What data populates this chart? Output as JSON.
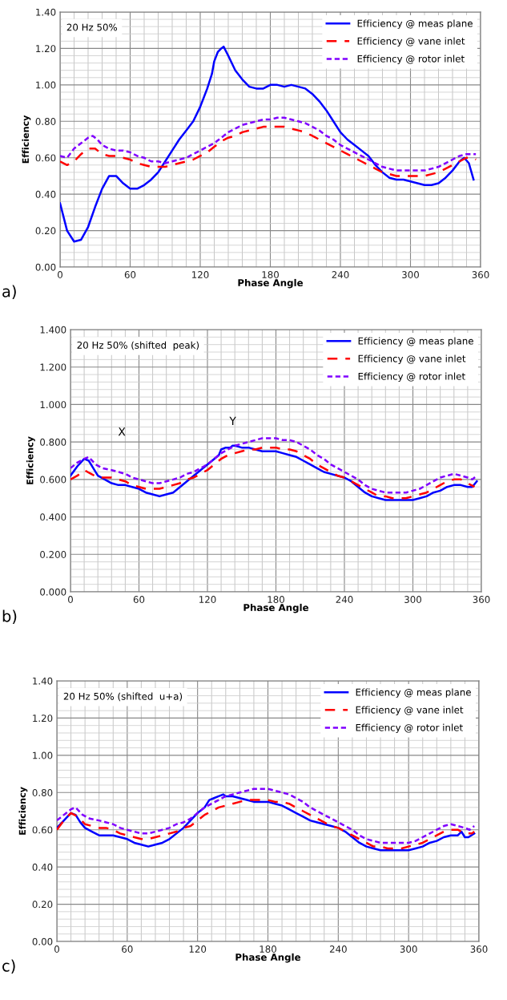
{
  "chart_data": [
    {
      "type": "line",
      "title": "20 Hz 50%",
      "xlabel": "Phase Angle",
      "ylabel": "Efficiency",
      "annotations": [
        "a)"
      ],
      "xlim": [
        0,
        360
      ],
      "ylim": [
        0,
        1.4
      ],
      "xticks": [
        0,
        60,
        120,
        180,
        240,
        300,
        360
      ],
      "yticks": [
        {
          "value": 0,
          "label": "0.00"
        },
        {
          "value": 0.2,
          "label": "0.20"
        },
        {
          "value": 0.4,
          "label": "0.40"
        },
        {
          "value": 0.6,
          "label": "0.60"
        },
        {
          "value": 0.8,
          "label": "0.80"
        },
        {
          "value": 1.0,
          "label": "1.00"
        },
        {
          "value": 1.2,
          "label": "1.20"
        },
        {
          "value": 1.4,
          "label": "1.40"
        }
      ],
      "grid": true,
      "legend": "top right",
      "series": [
        {
          "name": "Efficiency @ meas plane",
          "color": "#0000ff",
          "line_style": "solid",
          "x": [
            0,
            6,
            12,
            18,
            24,
            30,
            36,
            42,
            48,
            54,
            60,
            66,
            72,
            78,
            84,
            90,
            96,
            102,
            108,
            114,
            120,
            126,
            130,
            132,
            135,
            138,
            140,
            144,
            150,
            156,
            162,
            168,
            174,
            180,
            186,
            192,
            198,
            204,
            210,
            216,
            222,
            228,
            234,
            240,
            246,
            252,
            258,
            264,
            270,
            276,
            282,
            288,
            294,
            300,
            306,
            312,
            318,
            324,
            330,
            336,
            342,
            346,
            350,
            354
          ],
          "values": [
            0.35,
            0.2,
            0.14,
            0.15,
            0.22,
            0.33,
            0.43,
            0.5,
            0.5,
            0.46,
            0.43,
            0.43,
            0.45,
            0.48,
            0.52,
            0.58,
            0.64,
            0.7,
            0.75,
            0.8,
            0.88,
            0.98,
            1.06,
            1.13,
            1.18,
            1.2,
            1.21,
            1.16,
            1.08,
            1.03,
            0.99,
            0.98,
            0.98,
            1.0,
            1.0,
            0.99,
            1.0,
            0.99,
            0.98,
            0.95,
            0.91,
            0.86,
            0.8,
            0.74,
            0.7,
            0.67,
            0.64,
            0.61,
            0.56,
            0.52,
            0.49,
            0.48,
            0.48,
            0.47,
            0.46,
            0.45,
            0.45,
            0.46,
            0.49,
            0.53,
            0.58,
            0.6,
            0.57,
            0.48
          ]
        },
        {
          "name": "Efficiency @ vane inlet",
          "color": "#ff0000",
          "line_style": "dashed",
          "x": [
            0,
            6,
            12,
            18,
            24,
            30,
            36,
            42,
            48,
            54,
            60,
            66,
            72,
            78,
            84,
            90,
            96,
            102,
            108,
            114,
            120,
            126,
            132,
            138,
            144,
            150,
            156,
            162,
            168,
            174,
            180,
            186,
            192,
            198,
            204,
            210,
            216,
            222,
            228,
            234,
            240,
            246,
            252,
            258,
            264,
            270,
            276,
            282,
            288,
            294,
            300,
            306,
            312,
            318,
            324,
            330,
            336,
            342,
            348,
            354,
            356
          ],
          "values": [
            0.58,
            0.56,
            0.58,
            0.62,
            0.65,
            0.65,
            0.62,
            0.61,
            0.61,
            0.6,
            0.59,
            0.57,
            0.56,
            0.55,
            0.55,
            0.55,
            0.56,
            0.57,
            0.58,
            0.59,
            0.61,
            0.63,
            0.66,
            0.69,
            0.71,
            0.72,
            0.74,
            0.75,
            0.76,
            0.77,
            0.77,
            0.77,
            0.77,
            0.76,
            0.75,
            0.74,
            0.72,
            0.7,
            0.68,
            0.66,
            0.64,
            0.62,
            0.6,
            0.58,
            0.56,
            0.54,
            0.52,
            0.51,
            0.5,
            0.5,
            0.5,
            0.5,
            0.5,
            0.51,
            0.52,
            0.54,
            0.56,
            0.58,
            0.6,
            0.6,
            0.59
          ]
        },
        {
          "name": "Efficiency @ rotor inlet",
          "color": "#8000ff",
          "line_style": "dotted",
          "x": [
            0,
            6,
            12,
            18,
            24,
            28,
            32,
            36,
            42,
            48,
            54,
            60,
            66,
            72,
            78,
            84,
            90,
            96,
            102,
            108,
            114,
            120,
            126,
            132,
            138,
            144,
            150,
            156,
            162,
            168,
            174,
            180,
            186,
            192,
            198,
            204,
            210,
            216,
            222,
            228,
            234,
            240,
            246,
            252,
            258,
            264,
            270,
            276,
            282,
            288,
            294,
            300,
            306,
            312,
            318,
            324,
            330,
            336,
            342,
            348,
            354,
            356
          ],
          "values": [
            0.61,
            0.6,
            0.65,
            0.68,
            0.71,
            0.72,
            0.7,
            0.67,
            0.65,
            0.64,
            0.64,
            0.63,
            0.61,
            0.6,
            0.58,
            0.58,
            0.57,
            0.58,
            0.59,
            0.6,
            0.62,
            0.64,
            0.66,
            0.68,
            0.71,
            0.74,
            0.76,
            0.78,
            0.79,
            0.8,
            0.81,
            0.81,
            0.82,
            0.82,
            0.81,
            0.8,
            0.79,
            0.77,
            0.75,
            0.72,
            0.7,
            0.67,
            0.65,
            0.63,
            0.61,
            0.59,
            0.57,
            0.55,
            0.54,
            0.53,
            0.53,
            0.53,
            0.53,
            0.53,
            0.54,
            0.55,
            0.57,
            0.59,
            0.61,
            0.62,
            0.62,
            0.62
          ]
        }
      ]
    },
    {
      "type": "line",
      "title": "20 Hz 50% (shifted  peak)",
      "xlabel": "Phase Angle",
      "ylabel": "Efficiency",
      "annotations": [
        "b)",
        "X",
        "Y"
      ],
      "xlim": [
        0,
        360
      ],
      "ylim": [
        0,
        1.4
      ],
      "xticks": [
        0,
        60,
        120,
        180,
        240,
        300,
        360
      ],
      "yticks": [
        {
          "value": 0,
          "label": "0.000"
        },
        {
          "value": 0.2,
          "label": "0.200"
        },
        {
          "value": 0.4,
          "label": "0.400"
        },
        {
          "value": 0.6,
          "label": "0.600"
        },
        {
          "value": 0.8,
          "label": "0.800"
        },
        {
          "value": 1.0,
          "label": "1.000"
        },
        {
          "value": 1.2,
          "label": "1.200"
        },
        {
          "value": 1.4,
          "label": "1.400"
        }
      ],
      "grid": true,
      "legend": "top right",
      "series": [
        {
          "name": "Efficiency @ meas plane",
          "color": "#0000ff",
          "line_style": "solid",
          "x": [
            0,
            6,
            12,
            16,
            20,
            24,
            30,
            36,
            42,
            48,
            54,
            60,
            66,
            72,
            78,
            84,
            90,
            96,
            102,
            108,
            114,
            120,
            126,
            130,
            132,
            136,
            140,
            142,
            144,
            150,
            156,
            162,
            168,
            174,
            180,
            186,
            192,
            198,
            204,
            210,
            216,
            222,
            228,
            234,
            240,
            246,
            252,
            258,
            264,
            270,
            276,
            282,
            288,
            294,
            300,
            306,
            312,
            318,
            324,
            330,
            336,
            342,
            348,
            352,
            356
          ],
          "values": [
            0.62,
            0.67,
            0.71,
            0.7,
            0.66,
            0.62,
            0.6,
            0.58,
            0.57,
            0.57,
            0.56,
            0.55,
            0.53,
            0.52,
            0.51,
            0.52,
            0.53,
            0.56,
            0.59,
            0.62,
            0.65,
            0.68,
            0.71,
            0.73,
            0.76,
            0.77,
            0.77,
            0.78,
            0.78,
            0.77,
            0.77,
            0.76,
            0.75,
            0.75,
            0.75,
            0.74,
            0.73,
            0.72,
            0.7,
            0.68,
            0.66,
            0.64,
            0.63,
            0.62,
            0.61,
            0.59,
            0.56,
            0.53,
            0.51,
            0.5,
            0.49,
            0.49,
            0.49,
            0.49,
            0.49,
            0.5,
            0.51,
            0.53,
            0.54,
            0.56,
            0.57,
            0.57,
            0.56,
            0.56,
            0.59
          ]
        },
        {
          "name": "Efficiency @ vane inlet",
          "color": "#ff0000",
          "line_style": "dashed",
          "x": [
            0,
            6,
            12,
            18,
            24,
            30,
            36,
            42,
            48,
            54,
            60,
            66,
            72,
            78,
            84,
            90,
            96,
            102,
            108,
            114,
            120,
            126,
            132,
            138,
            144,
            150,
            156,
            162,
            168,
            174,
            180,
            186,
            192,
            198,
            204,
            210,
            216,
            222,
            228,
            234,
            240,
            246,
            252,
            258,
            264,
            270,
            276,
            282,
            288,
            294,
            300,
            306,
            312,
            318,
            324,
            330,
            336,
            342,
            348,
            354
          ],
          "values": [
            0.6,
            0.62,
            0.65,
            0.63,
            0.61,
            0.61,
            0.61,
            0.6,
            0.59,
            0.57,
            0.56,
            0.55,
            0.55,
            0.55,
            0.56,
            0.57,
            0.58,
            0.6,
            0.61,
            0.63,
            0.65,
            0.68,
            0.71,
            0.73,
            0.74,
            0.75,
            0.76,
            0.76,
            0.77,
            0.77,
            0.77,
            0.76,
            0.76,
            0.75,
            0.73,
            0.71,
            0.68,
            0.66,
            0.64,
            0.62,
            0.61,
            0.59,
            0.57,
            0.55,
            0.53,
            0.51,
            0.51,
            0.5,
            0.5,
            0.5,
            0.51,
            0.52,
            0.53,
            0.55,
            0.57,
            0.59,
            0.6,
            0.6,
            0.58,
            0.56
          ]
        },
        {
          "name": "Efficiency @ rotor inlet",
          "color": "#8000ff",
          "line_style": "dotted",
          "x": [
            0,
            6,
            12,
            16,
            22,
            28,
            36,
            42,
            48,
            54,
            60,
            66,
            72,
            78,
            84,
            90,
            96,
            102,
            108,
            114,
            120,
            126,
            132,
            138,
            144,
            150,
            156,
            162,
            168,
            174,
            180,
            186,
            192,
            198,
            204,
            210,
            216,
            222,
            228,
            234,
            240,
            246,
            252,
            258,
            264,
            270,
            276,
            282,
            288,
            294,
            300,
            306,
            312,
            318,
            324,
            330,
            336,
            342,
            348,
            352,
            356
          ],
          "values": [
            0.66,
            0.69,
            0.71,
            0.72,
            0.68,
            0.66,
            0.65,
            0.64,
            0.63,
            0.61,
            0.6,
            0.59,
            0.58,
            0.58,
            0.59,
            0.6,
            0.61,
            0.63,
            0.64,
            0.66,
            0.68,
            0.71,
            0.74,
            0.76,
            0.78,
            0.79,
            0.8,
            0.81,
            0.82,
            0.82,
            0.82,
            0.81,
            0.81,
            0.8,
            0.78,
            0.76,
            0.73,
            0.71,
            0.68,
            0.66,
            0.64,
            0.62,
            0.6,
            0.57,
            0.55,
            0.54,
            0.53,
            0.53,
            0.53,
            0.53,
            0.54,
            0.55,
            0.57,
            0.59,
            0.61,
            0.62,
            0.63,
            0.62,
            0.61,
            0.6,
            0.62
          ]
        }
      ]
    },
    {
      "type": "line",
      "title": "20 Hz 50% (shifted  u+a)",
      "xlabel": "Phase Angle",
      "ylabel": "Efficiency",
      "annotations": [
        "c)"
      ],
      "xlim": [
        0,
        360
      ],
      "ylim": [
        0,
        1.4
      ],
      "xticks": [
        0,
        60,
        120,
        180,
        240,
        300,
        360
      ],
      "yticks": [
        {
          "value": 0,
          "label": "0.00"
        },
        {
          "value": 0.2,
          "label": "0.20"
        },
        {
          "value": 0.4,
          "label": "0.40"
        },
        {
          "value": 0.6,
          "label": "0.60"
        },
        {
          "value": 0.8,
          "label": "0.80"
        },
        {
          "value": 1.0,
          "label": "1.00"
        },
        {
          "value": 1.2,
          "label": "1.20"
        },
        {
          "value": 1.4,
          "label": "1.40"
        }
      ],
      "grid": true,
      "legend": "top right",
      "series": [
        {
          "name": "Efficiency @ meas plane",
          "color": "#0000ff",
          "line_style": "solid",
          "x": [
            0,
            6,
            12,
            16,
            20,
            24,
            30,
            36,
            42,
            48,
            54,
            60,
            66,
            72,
            78,
            84,
            90,
            96,
            102,
            108,
            114,
            120,
            126,
            130,
            134,
            138,
            142,
            144,
            150,
            156,
            162,
            168,
            174,
            180,
            186,
            192,
            198,
            204,
            210,
            216,
            222,
            228,
            234,
            240,
            246,
            252,
            258,
            264,
            270,
            276,
            282,
            288,
            294,
            300,
            306,
            312,
            318,
            324,
            330,
            336,
            342,
            345,
            348,
            351,
            356
          ],
          "values": [
            0.61,
            0.65,
            0.69,
            0.68,
            0.64,
            0.61,
            0.59,
            0.57,
            0.57,
            0.57,
            0.56,
            0.55,
            0.53,
            0.52,
            0.51,
            0.52,
            0.53,
            0.55,
            0.58,
            0.61,
            0.65,
            0.69,
            0.72,
            0.76,
            0.77,
            0.78,
            0.79,
            0.78,
            0.78,
            0.77,
            0.76,
            0.75,
            0.75,
            0.75,
            0.74,
            0.73,
            0.71,
            0.69,
            0.67,
            0.65,
            0.64,
            0.63,
            0.62,
            0.61,
            0.59,
            0.56,
            0.53,
            0.51,
            0.5,
            0.49,
            0.49,
            0.49,
            0.49,
            0.49,
            0.5,
            0.51,
            0.53,
            0.54,
            0.56,
            0.57,
            0.57,
            0.59,
            0.56,
            0.56,
            0.58
          ]
        },
        {
          "name": "Efficiency @ vane inlet",
          "color": "#ff0000",
          "line_style": "dashed",
          "x": [
            0,
            6,
            12,
            18,
            24,
            30,
            36,
            42,
            48,
            54,
            60,
            66,
            72,
            78,
            84,
            90,
            96,
            102,
            108,
            114,
            120,
            126,
            132,
            138,
            144,
            150,
            156,
            162,
            168,
            174,
            180,
            186,
            192,
            198,
            204,
            210,
            216,
            222,
            228,
            234,
            240,
            246,
            252,
            258,
            264,
            270,
            276,
            282,
            288,
            294,
            300,
            306,
            312,
            318,
            324,
            330,
            336,
            342,
            348,
            354,
            356
          ],
          "values": [
            0.6,
            0.65,
            0.69,
            0.67,
            0.63,
            0.62,
            0.61,
            0.61,
            0.6,
            0.58,
            0.57,
            0.56,
            0.55,
            0.55,
            0.56,
            0.57,
            0.58,
            0.59,
            0.61,
            0.62,
            0.65,
            0.68,
            0.7,
            0.72,
            0.73,
            0.74,
            0.75,
            0.76,
            0.76,
            0.76,
            0.76,
            0.75,
            0.75,
            0.74,
            0.72,
            0.7,
            0.68,
            0.66,
            0.64,
            0.62,
            0.61,
            0.59,
            0.57,
            0.55,
            0.53,
            0.51,
            0.51,
            0.5,
            0.5,
            0.5,
            0.51,
            0.52,
            0.53,
            0.55,
            0.57,
            0.59,
            0.6,
            0.6,
            0.58,
            0.58,
            0.59
          ]
        },
        {
          "name": "Efficiency @ rotor inlet",
          "color": "#8000ff",
          "line_style": "dotted",
          "x": [
            0,
            6,
            12,
            16,
            22,
            28,
            36,
            42,
            48,
            54,
            60,
            66,
            72,
            78,
            84,
            90,
            96,
            102,
            108,
            114,
            120,
            126,
            132,
            138,
            144,
            150,
            156,
            162,
            168,
            174,
            180,
            186,
            192,
            198,
            204,
            210,
            216,
            222,
            228,
            234,
            240,
            246,
            252,
            258,
            264,
            270,
            276,
            282,
            288,
            294,
            300,
            306,
            312,
            318,
            324,
            330,
            336,
            342,
            348,
            352,
            356
          ],
          "values": [
            0.65,
            0.68,
            0.71,
            0.72,
            0.68,
            0.66,
            0.65,
            0.64,
            0.63,
            0.61,
            0.6,
            0.59,
            0.58,
            0.58,
            0.59,
            0.6,
            0.61,
            0.63,
            0.64,
            0.66,
            0.69,
            0.72,
            0.74,
            0.76,
            0.78,
            0.79,
            0.8,
            0.81,
            0.82,
            0.82,
            0.82,
            0.81,
            0.8,
            0.79,
            0.77,
            0.75,
            0.72,
            0.7,
            0.68,
            0.66,
            0.64,
            0.62,
            0.6,
            0.57,
            0.55,
            0.54,
            0.53,
            0.53,
            0.53,
            0.53,
            0.53,
            0.54,
            0.56,
            0.58,
            0.6,
            0.62,
            0.63,
            0.62,
            0.61,
            0.6,
            0.62
          ]
        }
      ]
    }
  ]
}
